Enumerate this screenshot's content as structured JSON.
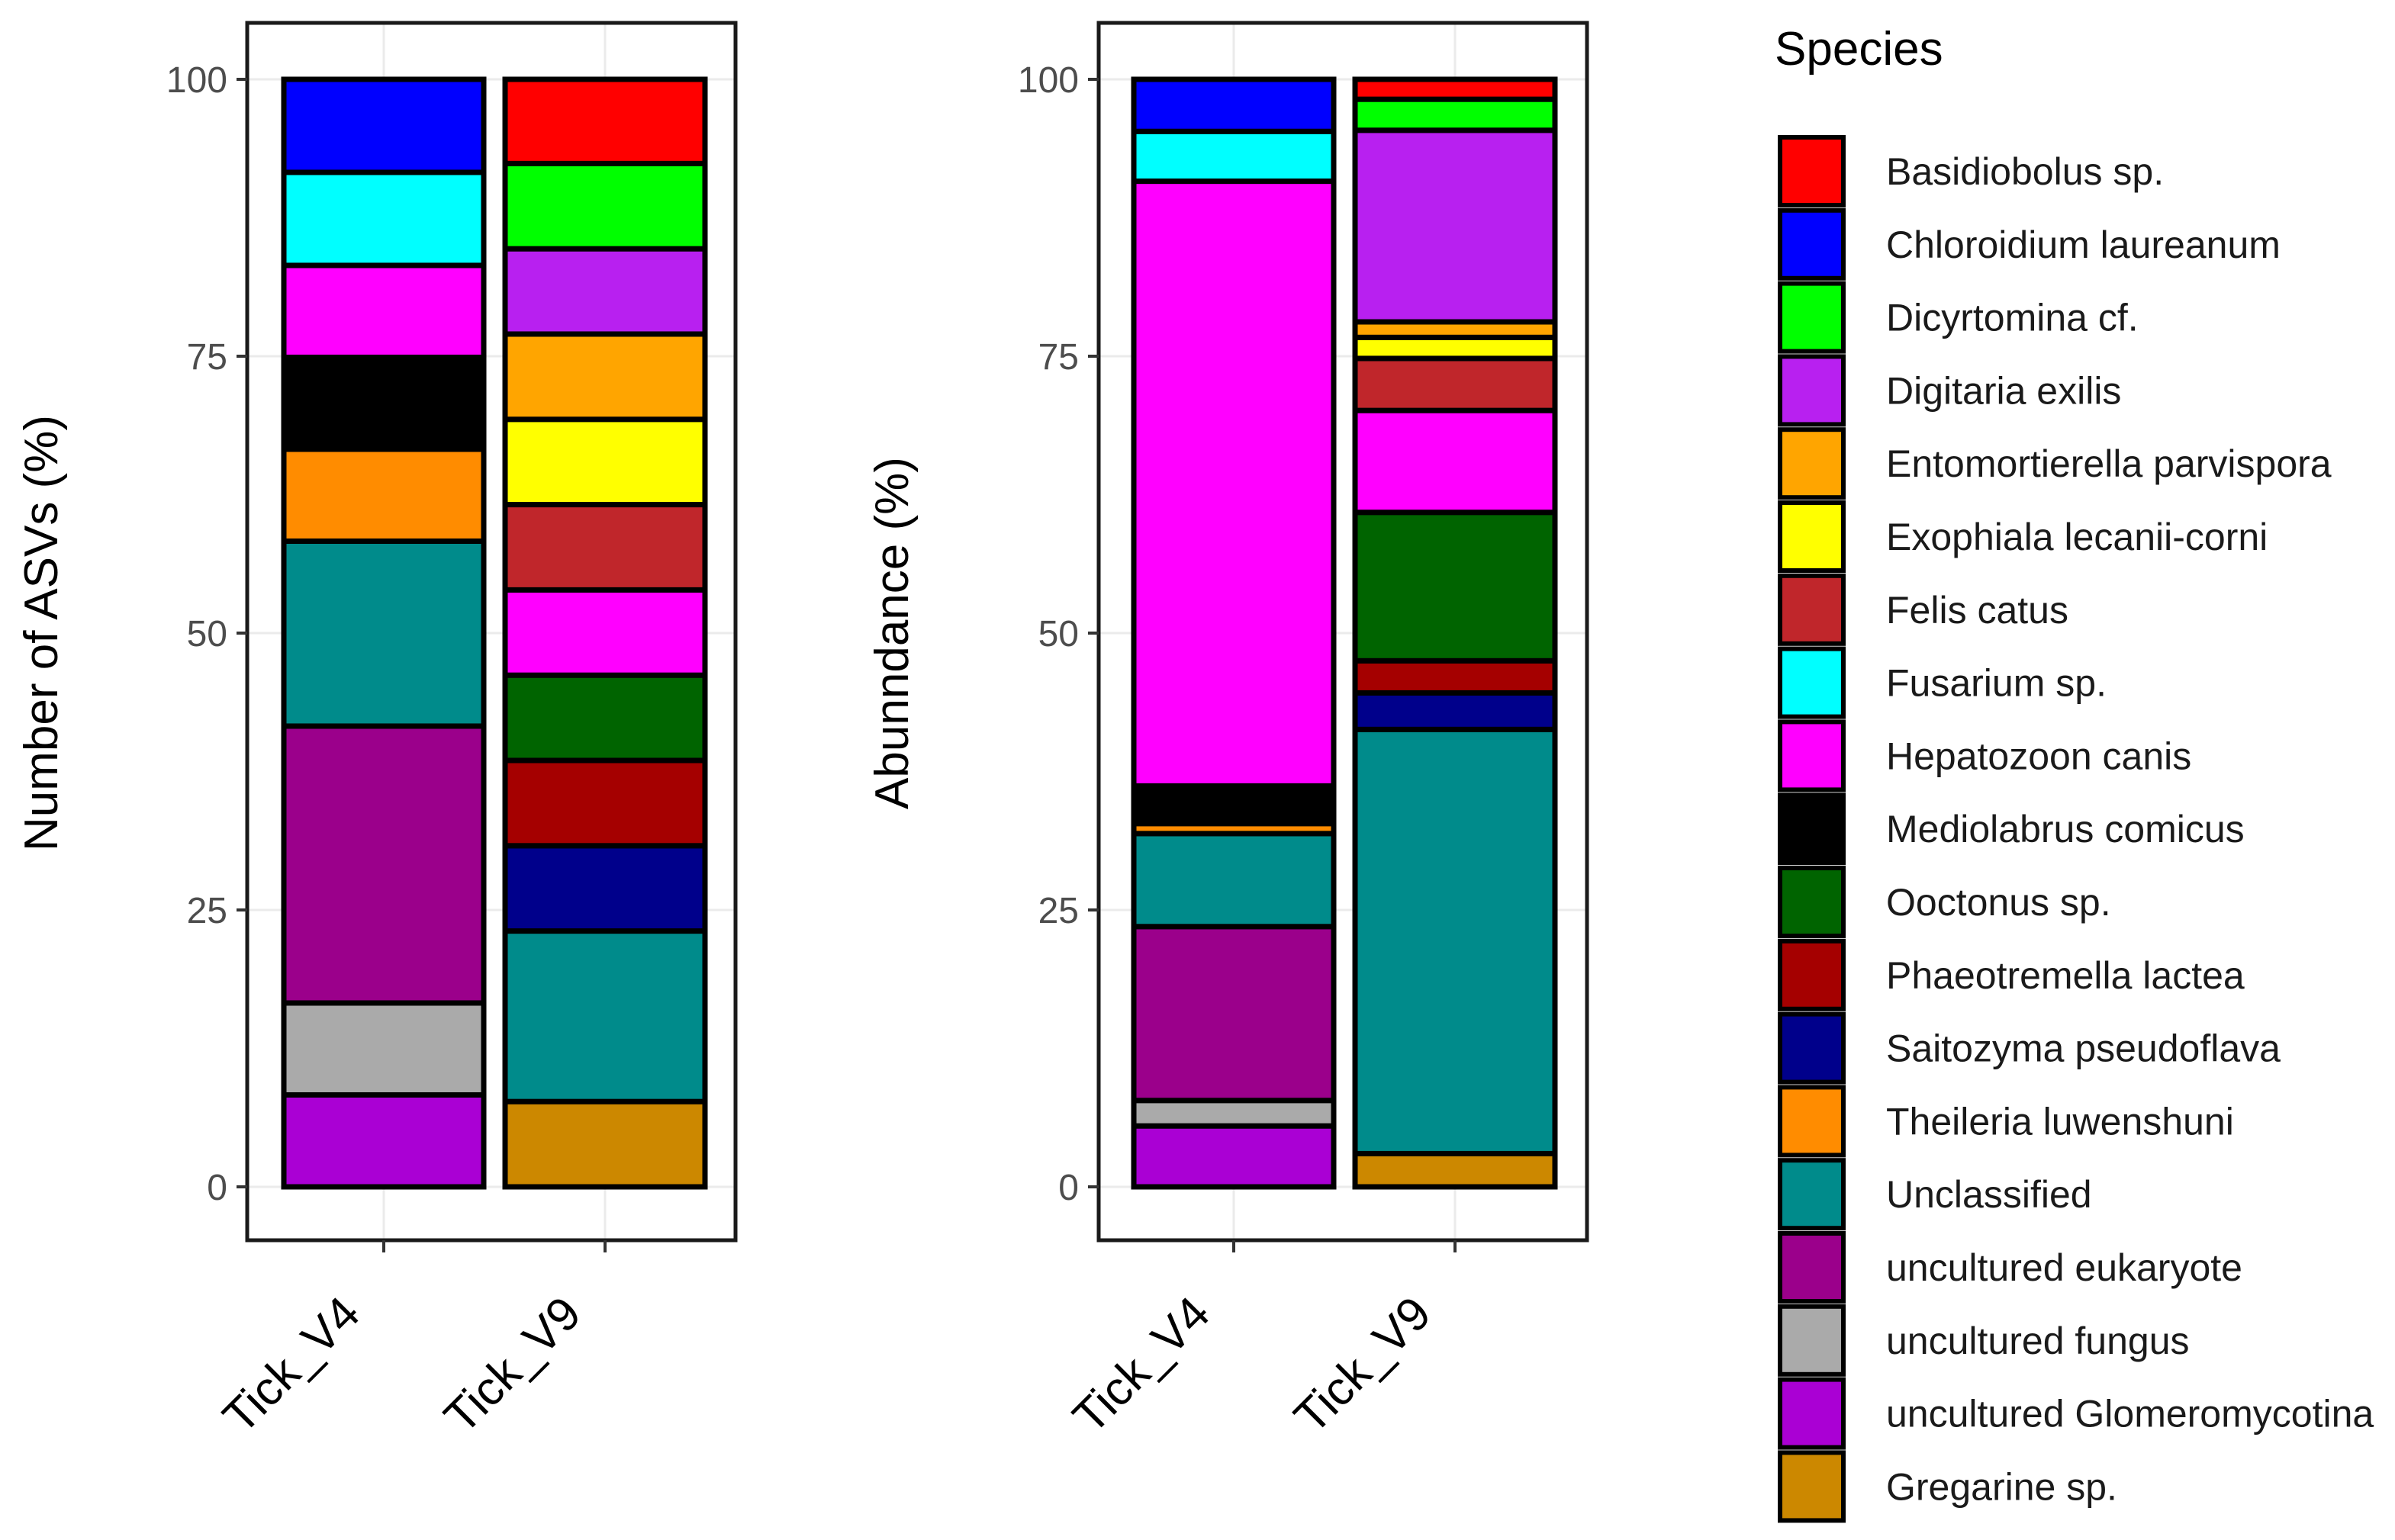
{
  "chart_data": [
    {
      "type": "bar",
      "stacked": true,
      "ylabel": "Number of ASVs (%)",
      "xlabel": "",
      "ylim": [
        0,
        100
      ],
      "yticks": [
        0,
        25,
        50,
        75,
        100
      ],
      "categories": [
        "Tick_V4",
        "Tick_V9"
      ],
      "bars": [
        {
          "category": "Tick_V4",
          "segments": [
            {
              "species": "uncultured  Glomeromycotina",
              "value": 8.3
            },
            {
              "species": "uncultured  fungus",
              "value": 8.3
            },
            {
              "species": "uncultured  eukaryote",
              "value": 25.0
            },
            {
              "species": "Unclassified",
              "value": 16.7
            },
            {
              "species": "Theileria  luwenshuni",
              "value": 8.3
            },
            {
              "species": "Mediolabrus  comicus",
              "value": 8.3
            },
            {
              "species": "Hepatozoon  canis",
              "value": 8.3
            },
            {
              "species": "Fusarium  sp.",
              "value": 8.4
            },
            {
              "species": "Chloroidium  laureanum",
              "value": 8.4
            }
          ]
        },
        {
          "category": "Tick_V9",
          "segments": [
            {
              "species": "Gregarine  sp.",
              "value": 7.7
            },
            {
              "species": "Unclassified",
              "value": 15.4
            },
            {
              "species": "Saitozyma  pseudoflava",
              "value": 7.7
            },
            {
              "species": "Phaeotremella  lactea",
              "value": 7.7
            },
            {
              "species": "Ooctonus  sp.",
              "value": 7.7
            },
            {
              "species": "Hepatozoon  canis",
              "value": 7.7
            },
            {
              "species": "Felis  catus",
              "value": 7.7
            },
            {
              "species": "Exophiala  lecanii-corni",
              "value": 7.7
            },
            {
              "species": "Entomortierella  parvispora",
              "value": 7.7
            },
            {
              "species": "Digitaria  exilis",
              "value": 7.7
            },
            {
              "species": "Dicyrtomina  cf.",
              "value": 7.7
            },
            {
              "species": "Basidiobolus  sp.",
              "value": 7.6
            }
          ]
        }
      ]
    },
    {
      "type": "bar",
      "stacked": true,
      "ylabel": "Abunndance  (%)",
      "xlabel": "",
      "ylim": [
        0,
        100
      ],
      "yticks": [
        0,
        25,
        50,
        75,
        100
      ],
      "categories": [
        "Tick_V4",
        "Tick_V9"
      ],
      "bars": [
        {
          "category": "Tick_V4",
          "segments": [
            {
              "species": "uncultured  Glomeromycotina",
              "value": 5.5
            },
            {
              "species": "uncultured  fungus",
              "value": 2.3
            },
            {
              "species": "uncultured  eukaryote",
              "value": 15.7
            },
            {
              "species": "Unclassified",
              "value": 8.4
            },
            {
              "species": "Theileria  luwenshuni",
              "value": 0.9
            },
            {
              "species": "Mediolabrus  comicus",
              "value": 3.4
            },
            {
              "species": "Hepatozoon  canis",
              "value": 54.6
            },
            {
              "species": "Fusarium  sp.",
              "value": 4.5
            },
            {
              "species": "Chloroidium  laureanum",
              "value": 4.7
            }
          ]
        },
        {
          "category": "Tick_V9",
          "segments": [
            {
              "species": "Gregarine  sp.",
              "value": 3.0
            },
            {
              "species": "Unclassified",
              "value": 38.3
            },
            {
              "species": "Saitozyma  pseudoflava",
              "value": 3.3
            },
            {
              "species": "Phaeotremella  lactea",
              "value": 2.9
            },
            {
              "species": "Ooctonus  sp.",
              "value": 13.4
            },
            {
              "species": "Hepatozoon  canis",
              "value": 9.2
            },
            {
              "species": "Felis  catus",
              "value": 4.7
            },
            {
              "species": "Exophiala  lecanii-corni",
              "value": 1.9
            },
            {
              "species": "Entomortierella  parvispora",
              "value": 1.4
            },
            {
              "species": "Digitaria  exilis",
              "value": 17.3
            },
            {
              "species": "Dicyrtomina  cf.",
              "value": 2.8
            },
            {
              "species": "Basidiobolus  sp.",
              "value": 1.8
            }
          ]
        }
      ]
    }
  ],
  "legend": {
    "title": "Species",
    "entries": [
      {
        "label": "Basidiobolus  sp.",
        "color": "#ff0000"
      },
      {
        "label": "Chloroidium  laureanum",
        "color": "#0000ff"
      },
      {
        "label": "Dicyrtomina  cf.",
        "color": "#00ff00"
      },
      {
        "label": "Digitaria  exilis",
        "color": "#b820f0"
      },
      {
        "label": "Entomortierella  parvispora",
        "color": "#ffa500"
      },
      {
        "label": "Exophiala  lecanii-corni",
        "color": "#ffff00"
      },
      {
        "label": "Felis  catus",
        "color": "#c0262b"
      },
      {
        "label": "Fusarium  sp.",
        "color": "#00ffff"
      },
      {
        "label": "Hepatozoon  canis",
        "color": "#ff00ff"
      },
      {
        "label": "Mediolabrus  comicus",
        "color": "#000000"
      },
      {
        "label": "Ooctonus  sp.",
        "color": "#006400"
      },
      {
        "label": "Phaeotremella  lactea",
        "color": "#a50000"
      },
      {
        "label": "Saitozyma  pseudoflava",
        "color": "#00008b"
      },
      {
        "label": "Theileria  luwenshuni",
        "color": "#ff8c00"
      },
      {
        "label": "Unclassified",
        "color": "#008b8b"
      },
      {
        "label": "uncultured  eukaryote",
        "color": "#9b008b"
      },
      {
        "label": "uncultured  fungus",
        "color": "#aaaaaa"
      },
      {
        "label": "uncultured  Glomeromycotina",
        "color": "#aa00d4"
      },
      {
        "label": "Gregarine  sp.",
        "color": "#cc8800"
      }
    ]
  }
}
